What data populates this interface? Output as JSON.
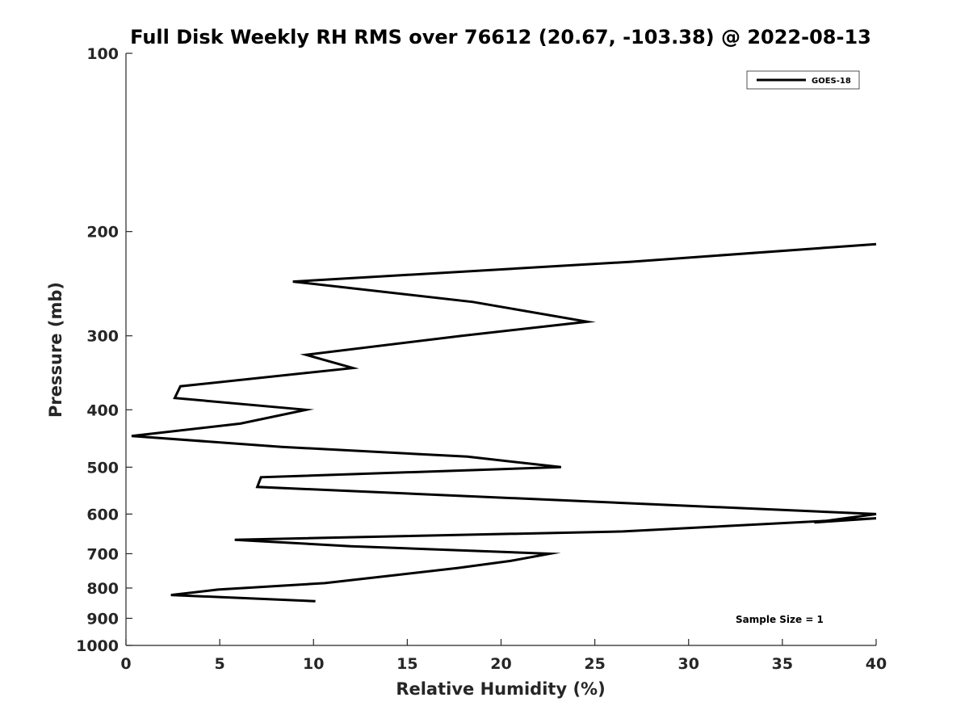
{
  "chart_data": {
    "type": "line",
    "title": "Full Disk Weekly RH RMS over 76612 (20.67, -103.38) @ 2022-08-13",
    "xlabel": "Relative Humidity (%)",
    "ylabel": "Pressure (mb)",
    "xlim": [
      0,
      40
    ],
    "ylim": [
      100,
      1000
    ],
    "yscale": "log",
    "yreversed": true,
    "grid": false,
    "legend_position": "top-right",
    "x_ticks": [
      0,
      5,
      10,
      15,
      20,
      25,
      30,
      35,
      40
    ],
    "x_tick_labels": [
      "0",
      "5",
      "10",
      "15",
      "20",
      "25",
      "30",
      "35",
      "40"
    ],
    "y_ticks": [
      100,
      200,
      300,
      400,
      500,
      600,
      700,
      800,
      900,
      1000
    ],
    "y_tick_labels": [
      "100",
      "200",
      "300",
      "400",
      "500",
      "600",
      "700",
      "800",
      "900",
      "1000"
    ],
    "series": [
      {
        "name": "GOES-18",
        "color": "#000000",
        "points": [
          {
            "x": 40.0,
            "y": 210
          },
          {
            "x": 26.9,
            "y": 225
          },
          {
            "x": 8.9,
            "y": 243
          },
          {
            "x": 18.5,
            "y": 263
          },
          {
            "x": 24.6,
            "y": 284
          },
          {
            "x": 17.9,
            "y": 300
          },
          {
            "x": 9.6,
            "y": 323
          },
          {
            "x": 12.1,
            "y": 340
          },
          {
            "x": 2.9,
            "y": 365
          },
          {
            "x": 2.6,
            "y": 382
          },
          {
            "x": 9.6,
            "y": 400
          },
          {
            "x": 6.1,
            "y": 422
          },
          {
            "x": 0.3,
            "y": 443
          },
          {
            "x": 8.3,
            "y": 462
          },
          {
            "x": 18.2,
            "y": 480
          },
          {
            "x": 23.2,
            "y": 500
          },
          {
            "x": 7.2,
            "y": 520
          },
          {
            "x": 7.0,
            "y": 540
          },
          {
            "x": 40.0,
            "y": 600
          },
          {
            "x": 36.7,
            "y": 620
          },
          {
            "x": 40.0,
            "y": 610
          },
          {
            "x": 26.5,
            "y": 642
          },
          {
            "x": 5.8,
            "y": 663
          },
          {
            "x": 12.0,
            "y": 680
          },
          {
            "x": 22.6,
            "y": 700
          },
          {
            "x": 20.5,
            "y": 720
          },
          {
            "x": 17.7,
            "y": 740
          },
          {
            "x": 14.5,
            "y": 760
          },
          {
            "x": 10.6,
            "y": 785
          },
          {
            "x": 4.9,
            "y": 805
          },
          {
            "x": 2.4,
            "y": 822
          },
          {
            "x": 10.1,
            "y": 842
          }
        ]
      }
    ],
    "annotation": "Sample Size = 1"
  }
}
